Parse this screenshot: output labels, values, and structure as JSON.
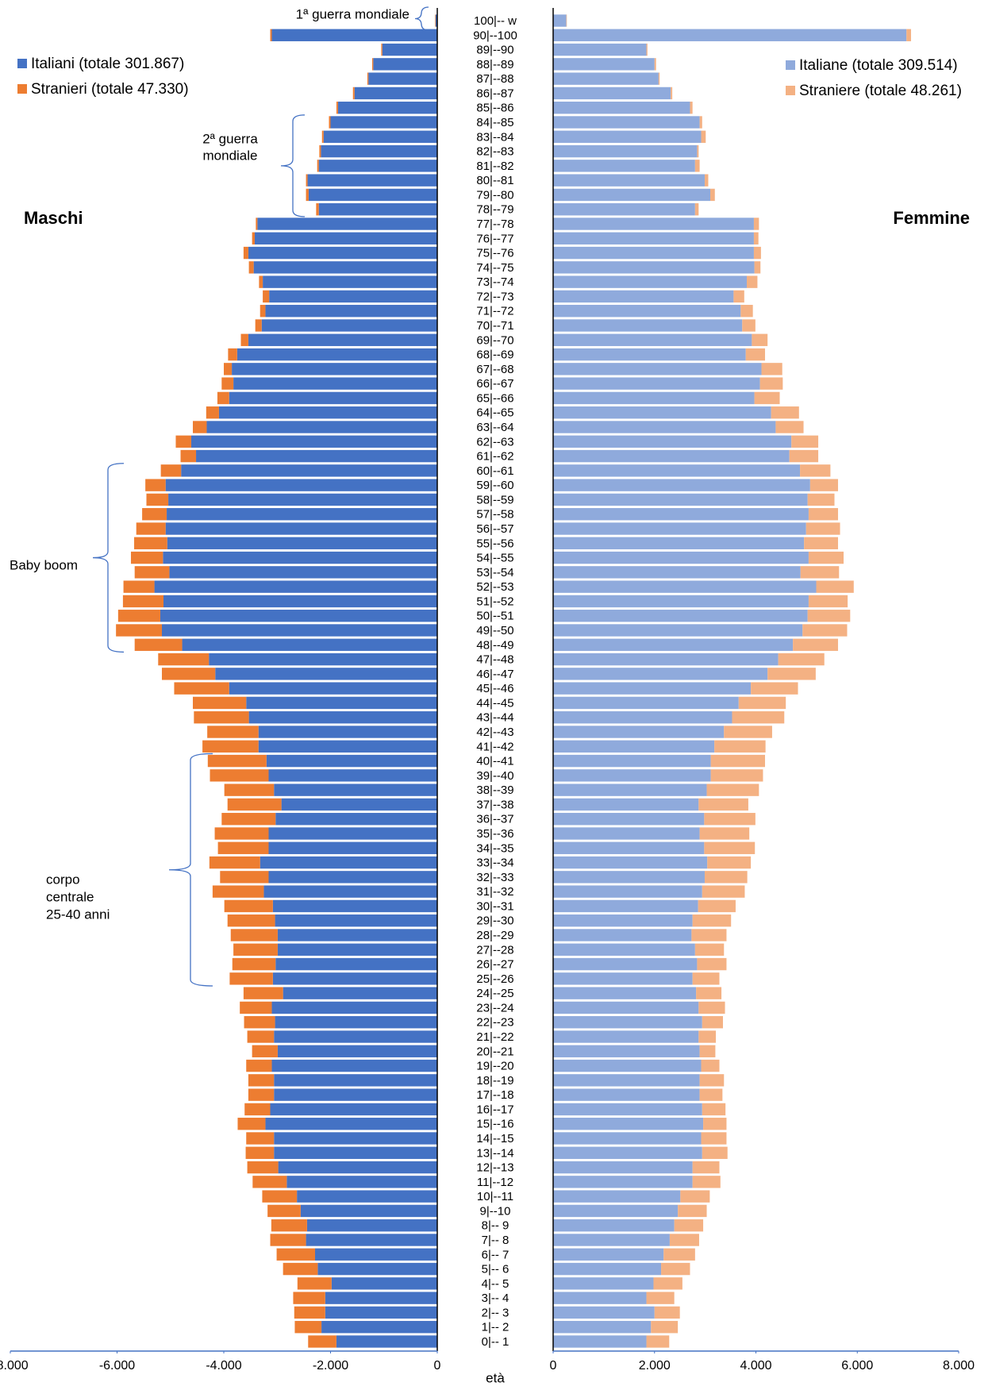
{
  "chart_data": {
    "type": "bar",
    "stacked": true,
    "xlabel": "età",
    "categories": [
      "0|-- 1",
      "1|-- 2",
      "2|-- 3",
      "3|-- 4",
      "4|-- 5",
      "5|-- 6",
      "6|-- 7",
      "7|-- 8",
      "8|-- 9",
      "9|--10",
      "10|--11",
      "11|--12",
      "12|--13",
      "13|--14",
      "14|--15",
      "15|--16",
      "16|--17",
      "17|--18",
      "18|--19",
      "19|--20",
      "20|--21",
      "21|--22",
      "22|--23",
      "23|--24",
      "24|--25",
      "25|--26",
      "26|--27",
      "27|--28",
      "28|--29",
      "29|--30",
      "30|--31",
      "31|--32",
      "32|--33",
      "33|--34",
      "34|--35",
      "35|--36",
      "36|--37",
      "37|--38",
      "38|--39",
      "39|--40",
      "40|--41",
      "41|--42",
      "42|--43",
      "43|--44",
      "44|--45",
      "45|--46",
      "46|--47",
      "47|--48",
      "48|--49",
      "49|--50",
      "50|--51",
      "51|--52",
      "52|--53",
      "53|--54",
      "54|--55",
      "55|--56",
      "56|--57",
      "57|--58",
      "58|--59",
      "59|--60",
      "60|--61",
      "61|--62",
      "62|--63",
      "63|--64",
      "64|--65",
      "65|--66",
      "66|--67",
      "67|--68",
      "68|--69",
      "69|--70",
      "70|--71",
      "71|--72",
      "72|--73",
      "73|--74",
      "74|--75",
      "75|--76",
      "76|--77",
      "77|--78",
      "78|--79",
      "79|--80",
      "80|--81",
      "81|--82",
      "82|--83",
      "83|--84",
      "84|--85",
      "85|--86",
      "86|--87",
      "87|--88",
      "88|--89",
      "89|--90",
      "90|--100",
      "100|-- w"
    ],
    "panels": [
      {
        "title": "Maschi",
        "xlim": [
          -8000,
          0
        ],
        "xticks": [
          {
            "value": -8000,
            "label": "-8.000"
          },
          {
            "value": -6000,
            "label": "-6.000"
          },
          {
            "value": -4000,
            "label": "-4.000"
          },
          {
            "value": -2000,
            "label": "-2.000"
          },
          0
        ],
        "legend": "upper left",
        "series": [
          {
            "name": "Italiani (totale 301.867)",
            "color": "#4472c4",
            "values": [
              -1890,
              -2170,
              -2100,
              -2100,
              -1980,
              -2240,
              -2290,
              -2460,
              -2440,
              -2560,
              -2630,
              -2820,
              -2980,
              -3060,
              -3060,
              -3220,
              -3130,
              -3060,
              -3060,
              -3100,
              -2990,
              -3060,
              -3040,
              -3100,
              -2890,
              -3080,
              -3030,
              -2990,
              -2990,
              -3040,
              -3080,
              -3250,
              -3160,
              -3320,
              -3160,
              -3160,
              -3030,
              -2920,
              -3060,
              -3160,
              -3200,
              -3350,
              -3350,
              -3530,
              -3580,
              -3900,
              -4160,
              -4280,
              -4780,
              -5160,
              -5190,
              -5130,
              -5300,
              -5020,
              -5140,
              -5060,
              -5090,
              -5070,
              -5040,
              -5090,
              -4800,
              -4520,
              -4610,
              -4320,
              -4090,
              -3900,
              -3820,
              -3850,
              -3750,
              -3540,
              -3290,
              -3220,
              -3150,
              -3270,
              -3440,
              -3540,
              -3420,
              -3370,
              -2220,
              -2410,
              -2430,
              -2220,
              -2180,
              -2130,
              -2000,
              -1860,
              -1550,
              -1290,
              -1200,
              -1030,
              -3100,
              -30
            ]
          },
          {
            "name": "Stranieri (totale 47.330)",
            "color": "#ed7d31",
            "values": [
              -530,
              -500,
              -580,
              -600,
              -640,
              -650,
              -720,
              -670,
              -670,
              -620,
              -650,
              -640,
              -580,
              -530,
              -520,
              -520,
              -480,
              -480,
              -480,
              -480,
              -480,
              -500,
              -580,
              -600,
              -740,
              -810,
              -810,
              -830,
              -880,
              -890,
              -910,
              -960,
              -910,
              -950,
              -950,
              -1010,
              -1010,
              -1010,
              -930,
              -1100,
              -1100,
              -1050,
              -960,
              -1030,
              -1000,
              -1030,
              -1000,
              -950,
              -890,
              -860,
              -790,
              -760,
              -580,
              -650,
              -600,
              -620,
              -550,
              -460,
              -410,
              -380,
              -380,
              -290,
              -290,
              -260,
              -240,
              -220,
              -220,
              -150,
              -170,
              -140,
              -120,
              -100,
              -120,
              -70,
              -90,
              -90,
              -50,
              -30,
              -50,
              -50,
              -30,
              -30,
              -30,
              -30,
              -30,
              -30,
              -30,
              -20,
              -20,
              -20,
              -30,
              -10
            ]
          }
        ]
      },
      {
        "title": "Femmine",
        "xlim": [
          0,
          8000
        ],
        "xticks": [
          0,
          {
            "value": 2000,
            "label": "2.000"
          },
          {
            "value": 4000,
            "label": "4.000"
          },
          {
            "value": 6000,
            "label": "6.000"
          },
          {
            "value": 8000,
            "label": "8.000"
          }
        ],
        "legend": "upper right",
        "series": [
          {
            "name": "Italiane (totale 309.514)",
            "color": "#8faadc",
            "values": [
              1840,
              1930,
              2000,
              1840,
              1980,
              2130,
              2180,
              2300,
              2390,
              2460,
              2510,
              2750,
              2750,
              2940,
              2920,
              2960,
              2940,
              2890,
              2890,
              2920,
              2890,
              2870,
              2940,
              2870,
              2820,
              2750,
              2840,
              2800,
              2730,
              2750,
              2860,
              2940,
              2990,
              3040,
              2980,
              2890,
              2980,
              2870,
              3030,
              3110,
              3110,
              3180,
              3370,
              3530,
              3660,
              3900,
              4230,
              4440,
              4730,
              4920,
              5020,
              5040,
              5190,
              4880,
              5040,
              4950,
              4990,
              5040,
              5020,
              5070,
              4870,
              4660,
              4700,
              4390,
              4300,
              3970,
              4080,
              4110,
              3800,
              3920,
              3730,
              3700,
              3560,
              3820,
              3970,
              3960,
              3960,
              3960,
              2800,
              3100,
              2990,
              2800,
              2840,
              2920,
              2890,
              2700,
              2320,
              2080,
              2000,
              1840,
              6970,
              260
            ]
          },
          {
            "name": "Straniere (totale 48.261)",
            "color": "#f4b183",
            "values": [
              450,
              530,
              500,
              550,
              570,
              570,
              620,
              580,
              570,
              570,
              580,
              550,
              530,
              500,
              500,
              460,
              460,
              450,
              480,
              360,
              310,
              340,
              410,
              520,
              500,
              530,
              580,
              570,
              690,
              760,
              740,
              840,
              840,
              860,
              1000,
              980,
              1010,
              980,
              1030,
              1030,
              1070,
              1010,
              950,
              1030,
              930,
              930,
              950,
              910,
              890,
              880,
              840,
              770,
              740,
              760,
              690,
              670,
              670,
              580,
              530,
              550,
              600,
              570,
              530,
              550,
              550,
              500,
              450,
              410,
              380,
              310,
              260,
              240,
              210,
              210,
              120,
              140,
              90,
              100,
              70,
              90,
              70,
              90,
              30,
              90,
              50,
              50,
              30,
              20,
              30,
              20,
              90,
              10
            ]
          }
        ]
      }
    ],
    "annotations": [
      {
        "lines": [
          "1ª guerra mondiale"
        ]
      },
      {
        "lines": [
          "2ª guerra",
          "mondiale"
        ]
      },
      {
        "lines": [
          "Baby boom"
        ]
      },
      {
        "lines": [
          "corpo",
          "centrale",
          "25-40 anni"
        ]
      }
    ]
  }
}
